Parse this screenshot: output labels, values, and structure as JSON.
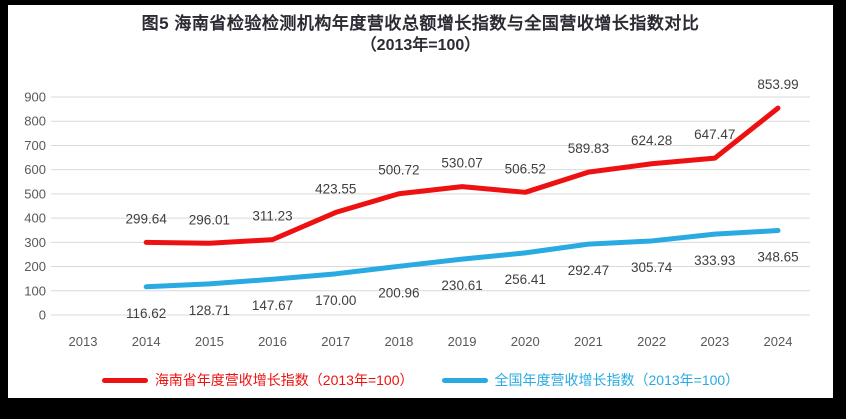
{
  "title": {
    "line1": "图5  海南省检验检测机构年度营收总额增长指数与全国营收增长指数对比",
    "line2": "（2013年=100）"
  },
  "chart_data": {
    "type": "line",
    "title": "图5 海南省检验检测机构年度营收总额增长指数与全国营收增长指数对比（2013年=100）",
    "categories": [
      "2013",
      "2014",
      "2015",
      "2016",
      "2017",
      "2018",
      "2019",
      "2020",
      "2021",
      "2022",
      "2023",
      "2024"
    ],
    "series": [
      {
        "id": "hainan",
        "name": "海南省年度营收增长指数（2013年=100）",
        "color": "#ee1111",
        "label_position": "above",
        "values": [
          null,
          "299.64",
          "296.01",
          "311.23",
          "423.55",
          "500.72",
          "530.07",
          "506.52",
          "589.83",
          "624.28",
          "647.47",
          "853.99"
        ]
      },
      {
        "id": "national",
        "name": "全国年度营收增长指数（2013年=100）",
        "color": "#29abe2",
        "label_position": "below",
        "values": [
          null,
          "116.62",
          "128.71",
          "147.67",
          "170.00",
          "200.96",
          "230.61",
          "256.41",
          "292.47",
          "305.74",
          "333.93",
          "348.65"
        ]
      }
    ],
    "ylim": [
      0,
      900
    ],
    "y_ticks": [
      0,
      100,
      200,
      300,
      400,
      500,
      600,
      700,
      800,
      900
    ],
    "xlabel": "",
    "ylabel": "",
    "grid": true,
    "gridline_color": "#d9d9d9",
    "legend_position": "bottom"
  }
}
